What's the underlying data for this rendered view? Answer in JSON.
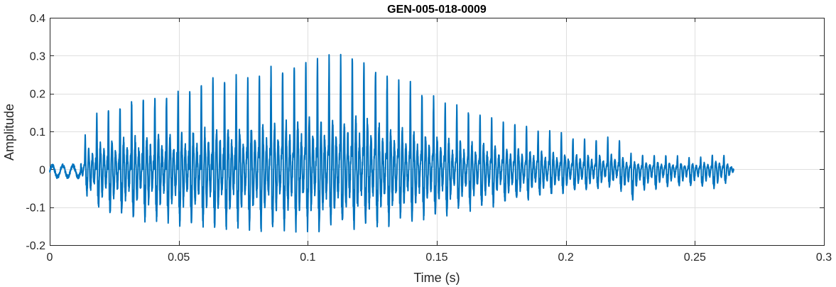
{
  "chart_data": {
    "type": "line",
    "title": "GEN-005-018-0009",
    "xlabel": "Time (s)",
    "ylabel": "Amplitude",
    "xlim": [
      0,
      0.3
    ],
    "ylim": [
      -0.2,
      0.4
    ],
    "xticks": [
      0,
      0.05,
      0.1,
      0.15,
      0.2,
      0.25,
      0.3
    ],
    "xtick_labels": [
      "0",
      "0.05",
      "0.1",
      "0.15",
      "0.2",
      "0.25",
      "0.3"
    ],
    "yticks": [
      -0.2,
      -0.1,
      0,
      0.1,
      0.2,
      0.3,
      0.4
    ],
    "ytick_labels": [
      "-0.2",
      "-0.1",
      "0",
      "0.1",
      "0.2",
      "0.3",
      "0.4"
    ],
    "grid": true,
    "series": [
      {
        "color": "#0072BD",
        "pulse_period": 0.0045,
        "x": [
          0,
          0.003,
          0.005,
          0.008,
          0.01,
          0.013,
          0.015,
          0.018,
          0.02,
          0.023,
          0.025,
          0.028,
          0.03,
          0.033,
          0.035,
          0.038,
          0.04,
          0.043,
          0.045,
          0.048,
          0.05,
          0.053,
          0.055,
          0.058,
          0.06,
          0.063,
          0.065,
          0.068,
          0.07,
          0.073,
          0.075,
          0.078,
          0.08,
          0.083,
          0.085,
          0.088,
          0.09,
          0.093,
          0.095,
          0.098,
          0.1,
          0.103,
          0.105,
          0.108,
          0.11,
          0.113,
          0.115,
          0.118,
          0.12,
          0.123,
          0.125,
          0.128,
          0.13,
          0.133,
          0.135,
          0.138,
          0.14,
          0.143,
          0.145,
          0.148,
          0.15,
          0.153,
          0.155,
          0.158,
          0.16,
          0.163,
          0.165,
          0.168,
          0.17,
          0.173,
          0.175,
          0.178,
          0.18,
          0.183,
          0.185,
          0.188,
          0.19,
          0.193,
          0.195,
          0.198,
          0.2,
          0.205,
          0.21,
          0.215,
          0.22,
          0.225,
          0.23,
          0.235,
          0.24,
          0.25,
          0.26,
          0.265
        ],
        "peak": [
          0.005,
          0.025,
          0.005,
          0.035,
          0.005,
          0.075,
          0.12,
          0.15,
          0.17,
          0.175,
          0.175,
          0.185,
          0.19,
          0.2,
          0.205,
          0.21,
          0.21,
          0.215,
          0.215,
          0.22,
          0.22,
          0.225,
          0.23,
          0.235,
          0.245,
          0.25,
          0.255,
          0.258,
          0.26,
          0.26,
          0.26,
          0.262,
          0.265,
          0.27,
          0.275,
          0.28,
          0.285,
          0.29,
          0.295,
          0.3,
          0.305,
          0.305,
          0.31,
          0.315,
          0.31,
          0.305,
          0.31,
          0.32,
          0.315,
          0.3,
          0.295,
          0.285,
          0.27,
          0.255,
          0.245,
          0.24,
          0.235,
          0.225,
          0.215,
          0.205,
          0.195,
          0.185,
          0.18,
          0.175,
          0.17,
          0.165,
          0.16,
          0.155,
          0.15,
          0.145,
          0.14,
          0.135,
          0.13,
          0.125,
          0.12,
          0.115,
          0.11,
          0.105,
          0.1,
          0.1,
          0.095,
          0.09,
          0.085,
          0.085,
          0.09,
          0.045,
          0.04,
          0.04,
          0.04,
          0.03,
          0.05,
          0.01
        ],
        "trough": [
          -0.01,
          -0.02,
          -0.02,
          -0.02,
          -0.03,
          -0.04,
          -0.09,
          -0.11,
          -0.12,
          -0.13,
          -0.13,
          -0.135,
          -0.14,
          -0.14,
          -0.145,
          -0.15,
          -0.15,
          -0.15,
          -0.155,
          -0.155,
          -0.16,
          -0.16,
          -0.16,
          -0.165,
          -0.165,
          -0.165,
          -0.17,
          -0.17,
          -0.17,
          -0.17,
          -0.17,
          -0.175,
          -0.175,
          -0.175,
          -0.175,
          -0.175,
          -0.175,
          -0.175,
          -0.175,
          -0.175,
          -0.175,
          -0.175,
          -0.175,
          -0.17,
          -0.17,
          -0.17,
          -0.17,
          -0.17,
          -0.17,
          -0.165,
          -0.165,
          -0.16,
          -0.16,
          -0.155,
          -0.15,
          -0.15,
          -0.145,
          -0.145,
          -0.14,
          -0.14,
          -0.135,
          -0.13,
          -0.13,
          -0.125,
          -0.12,
          -0.12,
          -0.115,
          -0.11,
          -0.11,
          -0.105,
          -0.1,
          -0.1,
          -0.095,
          -0.09,
          -0.09,
          -0.085,
          -0.08,
          -0.08,
          -0.075,
          -0.07,
          -0.07,
          -0.065,
          -0.06,
          -0.055,
          -0.05,
          -0.1,
          -0.06,
          -0.06,
          -0.05,
          -0.05,
          -0.06,
          -0.01
        ]
      }
    ]
  }
}
